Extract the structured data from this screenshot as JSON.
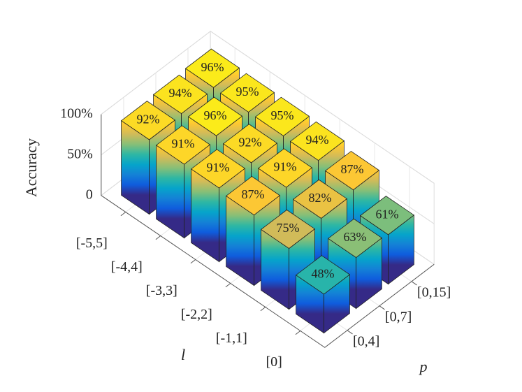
{
  "chart_data": {
    "type": "bar3d",
    "z_label": "Accuracy",
    "x_label": "l",
    "y_label": "p",
    "x_categories": [
      "[-5,5]",
      "[-4,4]",
      "[-3,3]",
      "[-2,2]",
      "[-1,1]",
      "[0]"
    ],
    "y_categories": [
      "[0,4]",
      "[0,7]",
      "[0,15]"
    ],
    "values": [
      [
        92,
        94,
        96
      ],
      [
        91,
        96,
        95
      ],
      [
        91,
        92,
        95
      ],
      [
        87,
        91,
        94
      ],
      [
        75,
        82,
        87
      ],
      [
        48,
        63,
        61
      ]
    ],
    "value_labels": [
      [
        "92%",
        "94%",
        "96%"
      ],
      [
        "91%",
        "96%",
        "95%"
      ],
      [
        "91%",
        "92%",
        "95%"
      ],
      [
        "87%",
        "91%",
        "94%"
      ],
      [
        "75%",
        "82%",
        "87%"
      ],
      [
        "48%",
        "63%",
        "61%"
      ]
    ],
    "zlim": [
      0,
      100
    ],
    "zticks": [
      0,
      {
        "value": 50,
        "label": "50%"
      },
      {
        "value": 100,
        "label": "100%"
      }
    ],
    "grid": true,
    "colormap": [
      "#352a87",
      "#0f5cdd",
      "#1481d6",
      "#06a4ca",
      "#2eb7a4",
      "#87bf77",
      "#d1bb59",
      "#fec832",
      "#f9fb0e"
    ]
  }
}
